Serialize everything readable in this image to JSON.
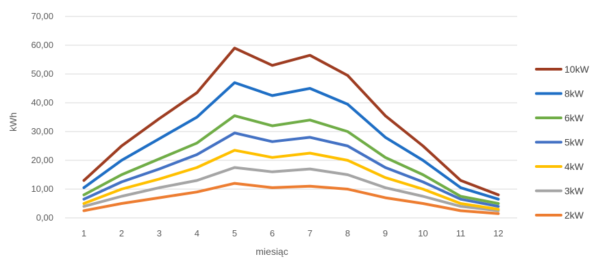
{
  "chart_data": {
    "type": "line",
    "xlabel": "miesiąc",
    "ylabel": "kWh",
    "ylim": [
      0,
      70
    ],
    "y_ticks": [
      "0,00",
      "10,00",
      "20,00",
      "30,00",
      "40,00",
      "50,00",
      "60,00",
      "70,00"
    ],
    "categories": [
      "1",
      "2",
      "3",
      "4",
      "5",
      "6",
      "7",
      "8",
      "9",
      "10",
      "11",
      "12"
    ],
    "grid": "horizontal",
    "legend_position": "right",
    "series": [
      {
        "name": "10kW",
        "color": "#9E3D22",
        "values": [
          13.0,
          25.0,
          34.5,
          43.5,
          59.0,
          53.0,
          56.5,
          49.5,
          35.5,
          25.0,
          13.0,
          8.0
        ]
      },
      {
        "name": "8kW",
        "color": "#1F6FC5",
        "values": [
          10.5,
          20.0,
          27.5,
          35.0,
          47.0,
          42.5,
          45.0,
          39.5,
          28.0,
          20.0,
          10.5,
          6.5
        ]
      },
      {
        "name": "6kW",
        "color": "#70AD47",
        "values": [
          8.0,
          15.0,
          20.5,
          26.0,
          35.5,
          32.0,
          34.0,
          30.0,
          21.0,
          15.0,
          7.5,
          5.0
        ]
      },
      {
        "name": "5kW",
        "color": "#4472C4",
        "values": [
          6.5,
          12.5,
          17.0,
          22.0,
          29.5,
          26.5,
          28.0,
          25.0,
          17.5,
          12.5,
          6.5,
          4.0
        ]
      },
      {
        "name": "4kW",
        "color": "#FFC000",
        "values": [
          5.0,
          10.0,
          13.5,
          17.5,
          23.5,
          21.0,
          22.5,
          20.0,
          14.0,
          10.0,
          5.0,
          3.0
        ]
      },
      {
        "name": "3kW",
        "color": "#A5A5A5",
        "values": [
          4.0,
          7.5,
          10.5,
          13.0,
          17.5,
          16.0,
          17.0,
          15.0,
          10.5,
          7.5,
          4.0,
          2.5
        ]
      },
      {
        "name": "2kW",
        "color": "#ED7D31",
        "values": [
          2.5,
          5.0,
          7.0,
          9.0,
          12.0,
          10.5,
          11.0,
          10.0,
          7.0,
          5.0,
          2.5,
          1.5
        ]
      }
    ]
  }
}
